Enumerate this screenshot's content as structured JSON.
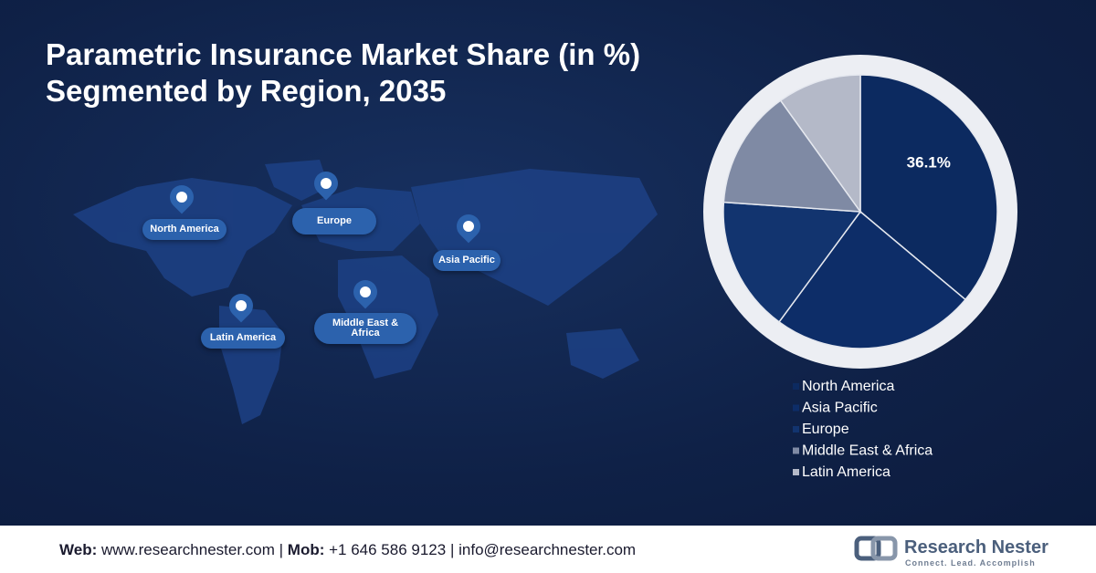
{
  "chart_data": {
    "type": "pie",
    "title_lines": [
      "Parametric Insurance Market Share (in %)",
      "Segmented by Region, 2035"
    ],
    "categories": [
      "North America",
      "Asia Pacific",
      "Europe",
      "Middle East & Africa",
      "Latin America"
    ],
    "values": [
      36.1,
      24,
      16,
      14,
      9.9
    ],
    "value_labels": [
      "36.1%",
      null,
      null,
      null,
      null
    ],
    "colors": [
      "#0c2a60",
      "#0d2d68",
      "#12346f",
      "#7f8aa4",
      "#b4b9c8"
    ],
    "legend": "bottom"
  },
  "map": {
    "labels": [
      "North America",
      "Europe",
      "Asia Pacific",
      "Latin America",
      "Middle East & Africa"
    ]
  },
  "footer": {
    "web_label": "Web:",
    "web": "www.researchnester.com",
    "sep1": "|",
    "mob_label": "Mob:",
    "mob": "+1 646 586 9123",
    "sep2": "|",
    "email": "info@researchnester.com"
  },
  "logo": {
    "name": "Research Nester",
    "tagline": "Connect. Lead. Accomplish"
  }
}
